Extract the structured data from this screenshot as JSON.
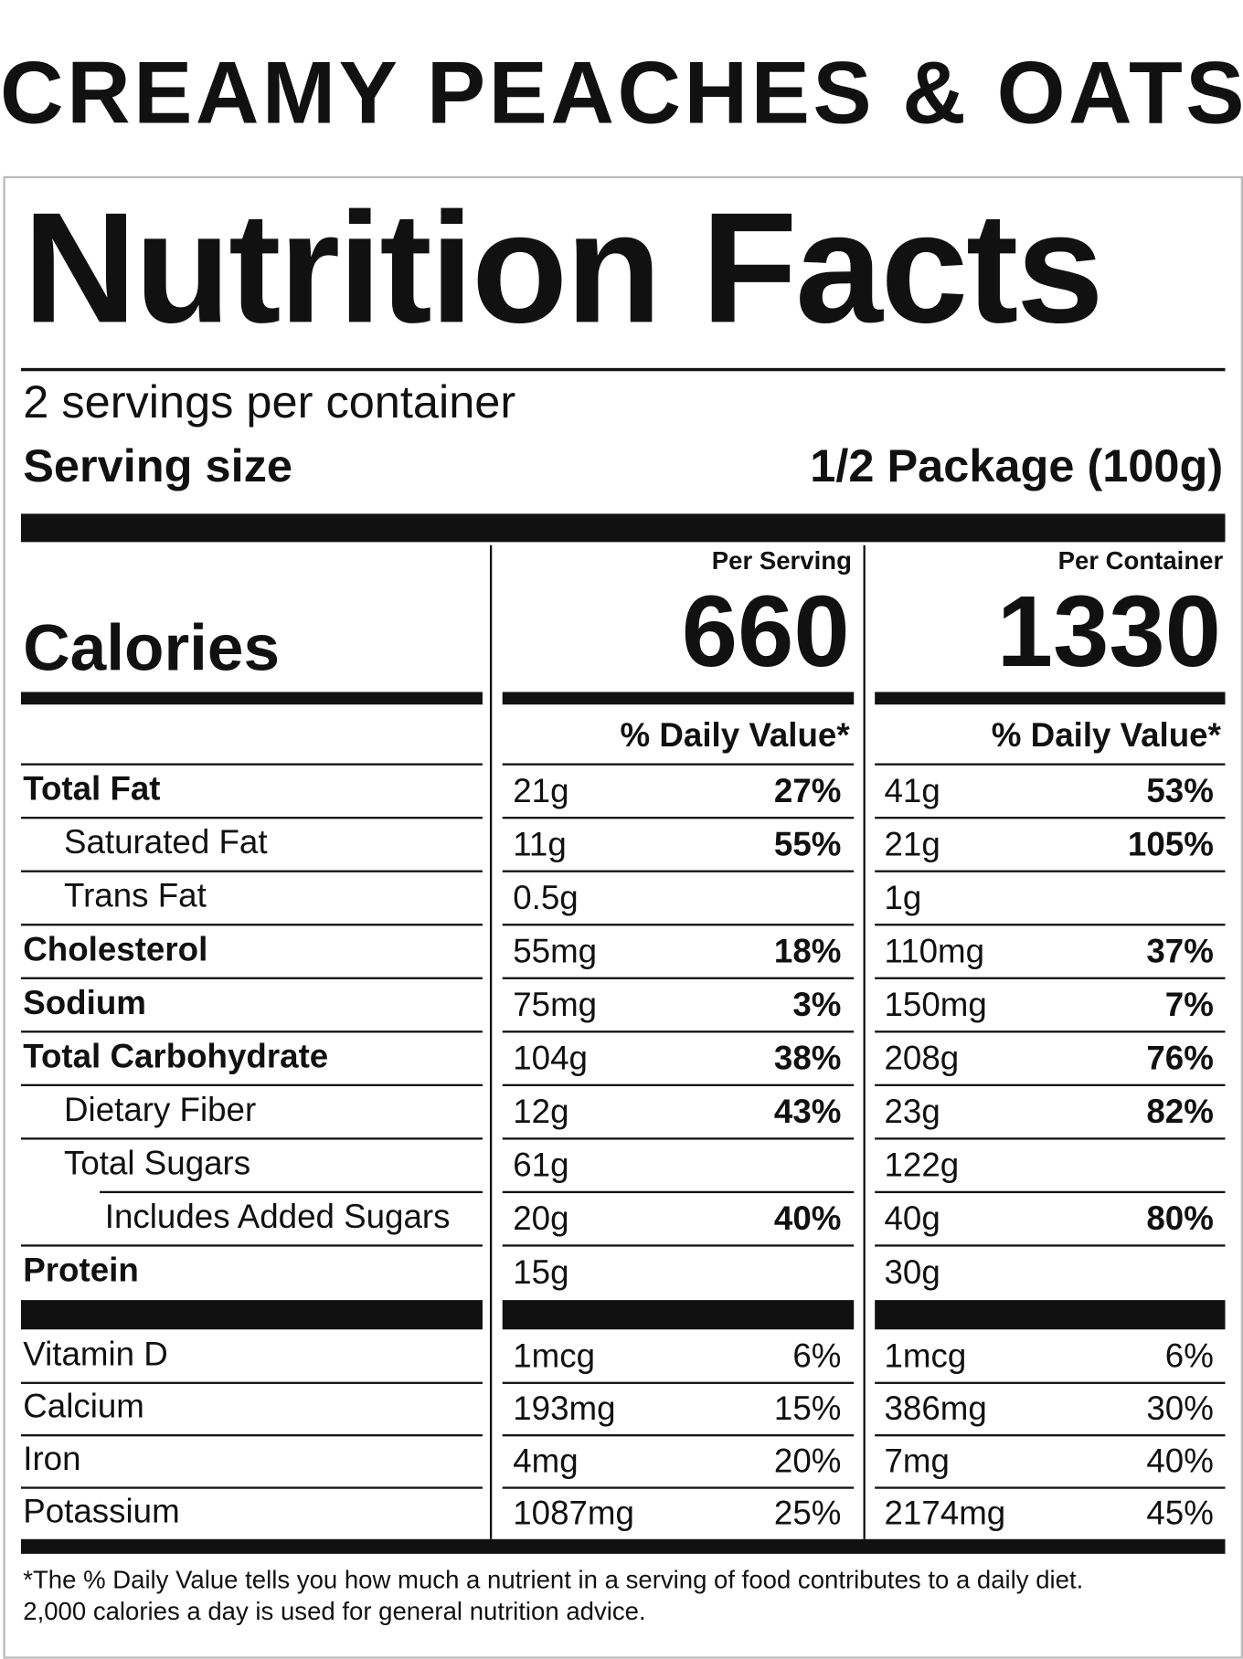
{
  "title": "CREAMY PEACHES & OATS",
  "header": {
    "title": "Nutrition Facts",
    "servings": "2 servings per container",
    "serving_size_label": "Serving size",
    "serving_size": "1/2 Package (100g)"
  },
  "calories_label": "Calories",
  "columns": [
    {
      "heading": "Per Serving",
      "calories": 660,
      "dv_heading": "% Daily Value*"
    },
    {
      "heading": "Per Container",
      "calories": 1330,
      "dv_heading": "% Daily Value*"
    }
  ],
  "nutrients": [
    {
      "name": "Total Fat",
      "bold": true,
      "indent": 0,
      "amounts": [
        {
          "amount": "21g",
          "dv": "27%"
        },
        {
          "amount": "41g",
          "dv": "53%"
        }
      ]
    },
    {
      "name": "Saturated Fat",
      "bold": false,
      "indent": 1,
      "amounts": [
        {
          "amount": "11g",
          "dv": "55%"
        },
        {
          "amount": "21g",
          "dv": "105%"
        }
      ]
    },
    {
      "name": "Trans Fat",
      "bold": false,
      "indent": 1,
      "amounts": [
        {
          "amount": "0.5g"
        },
        {
          "amount": "1g"
        }
      ]
    },
    {
      "name": "Cholesterol",
      "bold": true,
      "indent": 0,
      "amounts": [
        {
          "amount": "55mg",
          "dv": "18%"
        },
        {
          "amount": "110mg",
          "dv": "37%"
        }
      ]
    },
    {
      "name": "Sodium",
      "bold": true,
      "indent": 0,
      "amounts": [
        {
          "amount": "75mg",
          "dv": "3%"
        },
        {
          "amount": "150mg",
          "dv": "7%"
        }
      ]
    },
    {
      "name": "Total Carbohydrate",
      "bold": true,
      "indent": 0,
      "amounts": [
        {
          "amount": "104g",
          "dv": "38%"
        },
        {
          "amount": "208g",
          "dv": "76%"
        }
      ]
    },
    {
      "name": "Dietary Fiber",
      "bold": false,
      "indent": 1,
      "amounts": [
        {
          "amount": "12g",
          "dv": "43%"
        },
        {
          "amount": "23g",
          "dv": "82%"
        }
      ]
    },
    {
      "name": "Total Sugars",
      "bold": false,
      "indent": 1,
      "amounts": [
        {
          "amount": "61g"
        },
        {
          "amount": "122g"
        }
      ]
    },
    {
      "name": "Includes Added Sugars",
      "bold": false,
      "indent": 2,
      "amounts": [
        {
          "amount": "20g",
          "dv": "40%"
        },
        {
          "amount": "40g",
          "dv": "80%"
        }
      ]
    },
    {
      "name": "Protein",
      "bold": true,
      "indent": 0,
      "amounts": [
        {
          "amount": "15g"
        },
        {
          "amount": "30g"
        }
      ]
    }
  ],
  "vitamins": [
    {
      "name": "Vitamin D",
      "amounts": [
        {
          "amount": "1mcg",
          "dv": "6%"
        },
        {
          "amount": "1mcg",
          "dv": "6%"
        }
      ]
    },
    {
      "name": "Calcium",
      "amounts": [
        {
          "amount": "193mg",
          "dv": "15%"
        },
        {
          "amount": "386mg",
          "dv": "30%"
        }
      ]
    },
    {
      "name": "Iron",
      "amounts": [
        {
          "amount": "4mg",
          "dv": "20%"
        },
        {
          "amount": "7mg",
          "dv": "40%"
        }
      ]
    },
    {
      "name": "Potassium",
      "amounts": [
        {
          "amount": "1087mg",
          "dv": "25%"
        },
        {
          "amount": "2174mg",
          "dv": "45%"
        }
      ]
    }
  ],
  "footnote": [
    "*The % Daily Value tells you how much a nutrient in a serving of food contributes to a daily diet.",
    "2,000 calories a day is used for general nutrition advice."
  ]
}
